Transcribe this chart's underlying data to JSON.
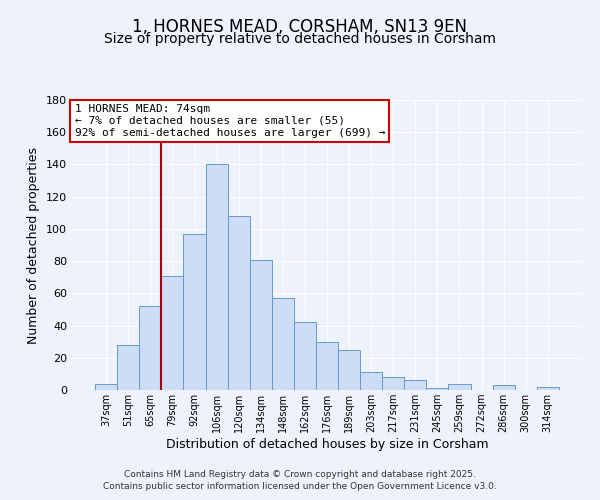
{
  "title": "1, HORNES MEAD, CORSHAM, SN13 9EN",
  "subtitle": "Size of property relative to detached houses in Corsham",
  "xlabel": "Distribution of detached houses by size in Corsham",
  "ylabel": "Number of detached properties",
  "bar_labels": [
    "37sqm",
    "51sqm",
    "65sqm",
    "79sqm",
    "92sqm",
    "106sqm",
    "120sqm",
    "134sqm",
    "148sqm",
    "162sqm",
    "176sqm",
    "189sqm",
    "203sqm",
    "217sqm",
    "231sqm",
    "245sqm",
    "259sqm",
    "272sqm",
    "286sqm",
    "300sqm",
    "314sqm"
  ],
  "bar_values": [
    4,
    28,
    52,
    71,
    97,
    140,
    108,
    81,
    57,
    42,
    30,
    25,
    11,
    8,
    6,
    1,
    4,
    0,
    3,
    0,
    2
  ],
  "bar_color": "#ccddf5",
  "bar_edge_color": "#6699cc",
  "ylim": [
    0,
    180
  ],
  "yticks": [
    0,
    20,
    40,
    60,
    80,
    100,
    120,
    140,
    160,
    180
  ],
  "vline_color": "#aa0000",
  "annotation_title": "1 HORNES MEAD: 74sqm",
  "annotation_line1": "← 7% of detached houses are smaller (55)",
  "annotation_line2": "92% of semi-detached houses are larger (699) →",
  "footer1": "Contains HM Land Registry data © Crown copyright and database right 2025.",
  "footer2": "Contains public sector information licensed under the Open Government Licence v3.0.",
  "background_color": "#eef2fb",
  "grid_color": "#ffffff",
  "title_fontsize": 12,
  "subtitle_fontsize": 10
}
